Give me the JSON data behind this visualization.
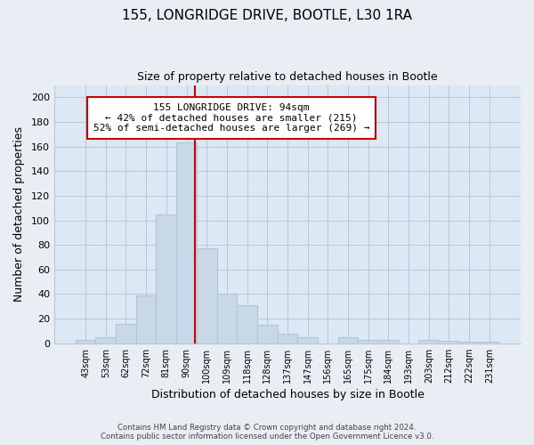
{
  "title": "155, LONGRIDGE DRIVE, BOOTLE, L30 1RA",
  "subtitle": "Size of property relative to detached houses in Bootle",
  "xlabel": "Distribution of detached houses by size in Bootle",
  "ylabel": "Number of detached properties",
  "bar_labels": [
    "43sqm",
    "53sqm",
    "62sqm",
    "72sqm",
    "81sqm",
    "90sqm",
    "100sqm",
    "109sqm",
    "118sqm",
    "128sqm",
    "137sqm",
    "147sqm",
    "156sqm",
    "165sqm",
    "175sqm",
    "184sqm",
    "193sqm",
    "203sqm",
    "212sqm",
    "222sqm",
    "231sqm"
  ],
  "bar_values": [
    3,
    5,
    16,
    39,
    105,
    163,
    77,
    40,
    31,
    15,
    8,
    5,
    0,
    5,
    3,
    3,
    0,
    3,
    2,
    1,
    1
  ],
  "bar_color": "#c8d8e8",
  "bar_edge_color": "#aec6d8",
  "ylim": [
    0,
    210
  ],
  "yticks": [
    0,
    20,
    40,
    60,
    80,
    100,
    120,
    140,
    160,
    180,
    200
  ],
  "vline_color": "#cc0000",
  "annotation_title": "155 LONGRIDGE DRIVE: 94sqm",
  "annotation_line1": "← 42% of detached houses are smaller (215)",
  "annotation_line2": "52% of semi-detached houses are larger (269) →",
  "annotation_box_color": "#ffffff",
  "annotation_box_edge": "#cc0000",
  "footer": "Contains HM Land Registry data © Crown copyright and database right 2024.\nContains public sector information licensed under the Open Government Licence v3.0.",
  "background_color": "#e8eef4",
  "plot_bg_color": "#dce8f4",
  "grid_color": "#b8c8d8"
}
